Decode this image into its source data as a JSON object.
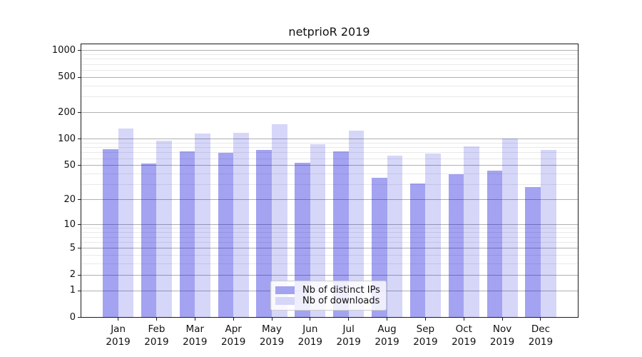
{
  "title": "netprioR 2019",
  "legend": {
    "items": [
      {
        "label": "Nb of distinct IPs",
        "color": "#a3a3f0"
      },
      {
        "label": "Nb of downloads",
        "color": "#d6d6f8"
      }
    ]
  },
  "y_axis": {
    "tick_labels": [
      "1000",
      "500",
      "200",
      "100",
      "50",
      "20",
      "10",
      "5",
      "2",
      "1",
      "0"
    ]
  },
  "x_axis": {
    "tick_labels": [
      "Jan 2019",
      "Feb 2019",
      "Mar 2019",
      "Apr 2019",
      "May 2019",
      "Jun 2019",
      "Jul 2019",
      "Aug 2019",
      "Sep 2019",
      "Oct 2019",
      "Nov 2019",
      "Dec 2019"
    ]
  },
  "chart_data": {
    "type": "bar",
    "title": "netprioR 2019",
    "categories": [
      "Jan",
      "Feb",
      "Mar",
      "Apr",
      "May",
      "Jun",
      "Jul",
      "Aug",
      "Sep",
      "Oct",
      "Nov",
      "Dec"
    ],
    "category_year": "2019",
    "series": [
      {
        "name": "Nb of distinct IPs",
        "fill": "rgba(0,0,215,0.36)",
        "legend_color": "#a3a3f0",
        "values": [
          77,
          53,
          73,
          70,
          76,
          54,
          73,
          36,
          31,
          40,
          44,
          28
        ]
      },
      {
        "name": "Nb of downloads",
        "fill": "rgba(0,0,215,0.16)",
        "legend_color": "#d6d6f8",
        "values": [
          133,
          97,
          115,
          119,
          148,
          87,
          125,
          65,
          69,
          83,
          102,
          75
        ]
      }
    ],
    "yscale": "log1p",
    "ylim": [
      0,
      1200
    ],
    "yticks": [
      1000,
      500,
      200,
      100,
      50,
      20,
      10,
      5,
      2,
      1,
      0
    ],
    "yticks_minor": [
      3,
      4,
      6,
      7,
      8,
      9,
      30,
      40,
      60,
      70,
      80,
      90,
      300,
      400,
      600,
      700,
      800,
      900
    ],
    "grid": "both",
    "legend_position": "lower-center",
    "grid_color_major": "#b0b0b0",
    "grid_color_minor": "#e9e9e9"
  }
}
